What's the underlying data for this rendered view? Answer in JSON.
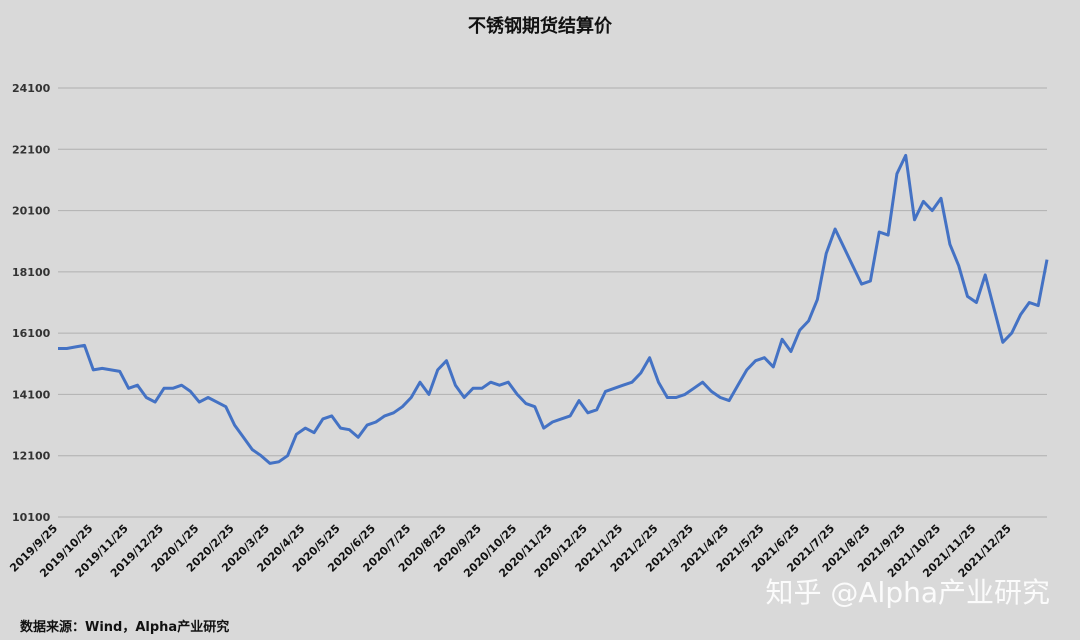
{
  "chart_data": {
    "type": "line",
    "title": "不锈钢期货结算价",
    "source": "数据来源：Wind，Alpha产业研究",
    "watermark": "知乎 @Alpha产业研究",
    "categories": [
      "2019/9/25",
      null,
      null,
      null,
      "2019/10/25",
      null,
      null,
      null,
      "2019/11/25",
      null,
      null,
      null,
      "2019/12/25",
      null,
      null,
      null,
      "2020/1/25",
      null,
      null,
      null,
      "2020/2/25",
      null,
      null,
      null,
      "2020/3/25",
      null,
      null,
      null,
      "2020/4/25",
      null,
      null,
      null,
      "2020/5/25",
      null,
      null,
      null,
      "2020/6/25",
      null,
      null,
      null,
      "2020/7/25",
      null,
      null,
      null,
      "2020/8/25",
      null,
      null,
      null,
      "2020/9/25",
      null,
      null,
      null,
      "2020/10/25",
      null,
      null,
      null,
      "2020/11/25",
      null,
      null,
      null,
      "2020/12/25",
      null,
      null,
      null,
      "2021/1/25",
      null,
      null,
      null,
      "2021/2/25",
      null,
      null,
      null,
      "2021/3/25",
      null,
      null,
      null,
      "2021/4/25",
      null,
      null,
      null,
      "2021/5/25",
      null,
      null,
      null,
      "2021/6/25",
      null,
      null,
      null,
      "2021/7/25",
      null,
      null,
      null,
      "2021/8/25",
      null,
      null,
      null,
      "2021/9/25",
      null,
      null,
      null,
      "2021/10/25",
      null,
      null,
      null,
      "2021/11/25",
      null,
      null,
      null,
      "2021/12/25",
      null,
      null,
      null,
      null
    ],
    "series": [
      {
        "name": "不锈钢期货结算价",
        "color": "#4472c4",
        "values": [
          15600,
          15600,
          15650,
          15700,
          14900,
          14950,
          14900,
          14850,
          14300,
          14400,
          14000,
          13850,
          14300,
          14300,
          14400,
          14200,
          13850,
          14000,
          13850,
          13700,
          13100,
          12700,
          12300,
          12100,
          11850,
          11900,
          12100,
          12800,
          13000,
          12850,
          13300,
          13400,
          13000,
          12950,
          12700,
          13100,
          13200,
          13400,
          13500,
          13700,
          14000,
          14500,
          14100,
          14900,
          15200,
          14400,
          14000,
          14300,
          14300,
          14500,
          14400,
          14500,
          14100,
          13800,
          13700,
          13000,
          13200,
          13300,
          13400,
          13900,
          13500,
          13600,
          14200,
          14300,
          14400,
          14500,
          14800,
          15300,
          14500,
          14000,
          14000,
          14100,
          14300,
          14500,
          14200,
          14000,
          13900,
          14400,
          14900,
          15200,
          15300,
          15000,
          15900,
          15500,
          16200,
          16500,
          17200,
          18700,
          19500,
          18900,
          18300,
          17700,
          17800,
          19400,
          19300,
          21300,
          21900,
          19800,
          20400,
          20100,
          20500,
          19000,
          18300,
          17300,
          17100,
          18000,
          16900,
          15800,
          16100,
          16700,
          17100,
          17000,
          18500
        ]
      }
    ],
    "ylim": [
      10100,
      24100
    ],
    "yticks": [
      10100,
      12100,
      14100,
      16100,
      18100,
      20100,
      22100,
      24100
    ],
    "grid": true
  }
}
